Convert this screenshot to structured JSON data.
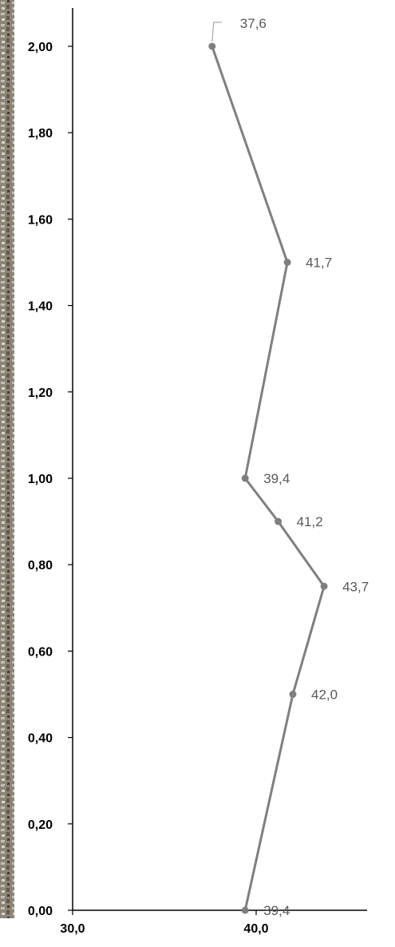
{
  "chart_data": {
    "type": "line",
    "title": "",
    "xlabel": "",
    "ylabel": "",
    "xlim": [
      30,
      44
    ],
    "ylim": [
      0,
      2.1
    ],
    "grid": false,
    "legend": "none",
    "x_ticks": [
      "30,0",
      "40,0"
    ],
    "y_ticks": [
      "0,00",
      "0,20",
      "0,40",
      "0,60",
      "0,80",
      "1,00",
      "1,20",
      "1,40",
      "1,60",
      "1,80",
      "2,00"
    ],
    "points": [
      {
        "x": 39.4,
        "y": 0.0,
        "label": "39,4"
      },
      {
        "x": 42.0,
        "y": 0.5,
        "label": "42,0"
      },
      {
        "x": 43.7,
        "y": 0.75,
        "label": "43,7"
      },
      {
        "x": 41.2,
        "y": 0.9,
        "label": "41,2"
      },
      {
        "x": 39.4,
        "y": 1.0,
        "label": "39,4"
      },
      {
        "x": 41.7,
        "y": 1.5,
        "label": "41,7"
      },
      {
        "x": 37.6,
        "y": 2.0,
        "label": "37,6"
      }
    ],
    "colors": {
      "line": "#7f7f7f",
      "marker": "#7f7f7f",
      "label": "#595959",
      "axis": "#000000",
      "background_strip": "#8a8270"
    }
  }
}
